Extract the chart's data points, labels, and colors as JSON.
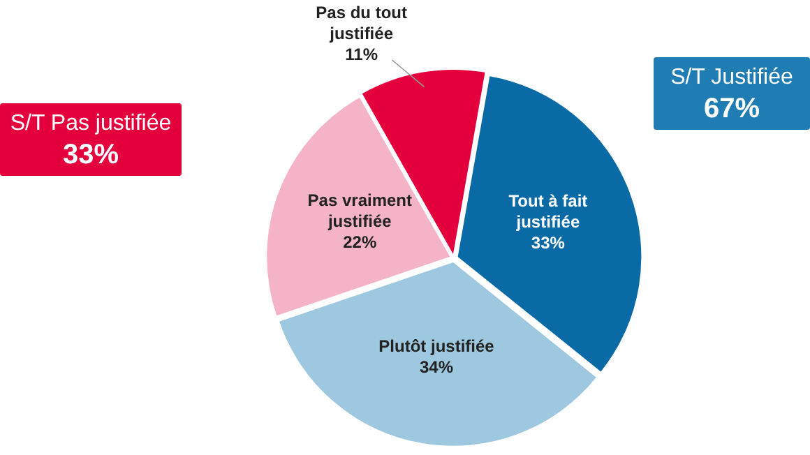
{
  "chart_data": {
    "type": "pie",
    "categories": [
      "Tout à fait justifiée",
      "Plutôt justifiée",
      "Pas vraiment justifiée",
      "Pas du tout justifiée"
    ],
    "values": [
      33,
      34,
      22,
      11
    ],
    "value_labels": [
      "33%",
      "34%",
      "22%",
      "11%"
    ],
    "colors": [
      "#0a6aa6",
      "#9ec8df",
      "#f4b3c7",
      "#e4003c"
    ],
    "legend": false,
    "annotations": [
      "S/T Pas justifiée\n33%",
      "S/T Justifiée\n67%"
    ]
  }
}
